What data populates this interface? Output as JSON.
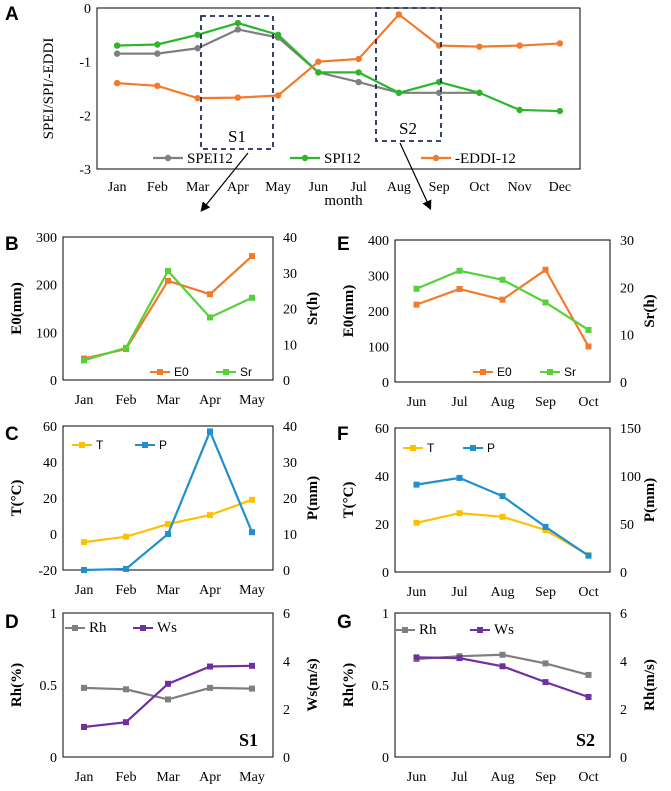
{
  "colors": {
    "grey": "#7f7f7f",
    "green": "#2db52d",
    "orange": "#f4792a",
    "lightgreen": "#55d13a",
    "yellow": "#ffc000",
    "blue": "#1f8fd0",
    "purple": "#7030a0",
    "dash": "#1f2d5a"
  },
  "chart_data": [
    {
      "id": "A",
      "panel_label": "A",
      "type": "line",
      "categories": [
        "Jan",
        "Feb",
        "Mar",
        "Apr",
        "May",
        "Jun",
        "Jul",
        "Aug",
        "Sep",
        "Oct",
        "Nov",
        "Dec"
      ],
      "xlabel": "month",
      "ylabel": "SPEI/SPI/-EDDI",
      "ylim": [
        -3,
        0
      ],
      "yticks": [
        "-3",
        "-2",
        "-1",
        "0"
      ],
      "series": [
        {
          "name": "SPEI12",
          "color": "grey",
          "values": [
            -0.85,
            -0.85,
            -0.75,
            -0.4,
            -0.55,
            -1.2,
            -1.38,
            -1.58,
            -1.58,
            -1.58,
            null,
            null
          ]
        },
        {
          "name": "SPI12",
          "color": "green",
          "values": [
            -0.7,
            -0.68,
            -0.5,
            -0.28,
            -0.5,
            -1.2,
            -1.2,
            -1.58,
            -1.38,
            -1.58,
            -1.9,
            -1.92
          ]
        },
        {
          "name": "-EDDI-12",
          "color": "orange",
          "values": [
            -1.4,
            -1.45,
            -1.68,
            -1.67,
            -1.63,
            -1.0,
            -0.95,
            -0.12,
            -0.7,
            -0.72,
            -0.7,
            -0.66
          ]
        }
      ],
      "annotations": [
        "S1",
        "S2"
      ]
    },
    {
      "id": "B",
      "panel_label": "B",
      "type": "line",
      "categories": [
        "Jan",
        "Feb",
        "Mar",
        "Apr",
        "May"
      ],
      "ylabel": "E0(mm)",
      "y2label": "Sr(h)",
      "ylim": [
        0,
        300
      ],
      "y2lim": [
        0,
        40
      ],
      "yticks": [
        "0",
        "100",
        "200",
        "300"
      ],
      "y2ticks": [
        "0",
        "10",
        "20",
        "30",
        "40"
      ],
      "series": [
        {
          "name": "E0",
          "axis": "left",
          "color": "orange",
          "values": [
            45,
            65,
            208,
            180,
            260
          ]
        },
        {
          "name": "Sr",
          "axis": "right",
          "color": "lightgreen",
          "values": [
            5.5,
            9.0,
            30.5,
            17.5,
            23
          ]
        }
      ]
    },
    {
      "id": "E",
      "panel_label": "E",
      "type": "line",
      "categories": [
        "Jun",
        "Jul",
        "Aug",
        "Sep",
        "Oct"
      ],
      "ylabel": "E0(mm)",
      "y2label": "Sr(h)",
      "ylim": [
        0,
        400
      ],
      "y2lim": [
        0,
        30
      ],
      "yticks": [
        "0",
        "100",
        "200",
        "300",
        "400"
      ],
      "y2ticks": [
        "0",
        "10",
        "20",
        "30"
      ],
      "series": [
        {
          "name": "E0",
          "axis": "left",
          "color": "orange",
          "values": [
            218,
            262,
            232,
            316,
            100
          ]
        },
        {
          "name": "Sr",
          "axis": "right",
          "color": "lightgreen",
          "values": [
            19.7,
            23.5,
            21.6,
            16.8,
            11
          ]
        }
      ]
    },
    {
      "id": "C",
      "panel_label": "C",
      "type": "line",
      "categories": [
        "Jan",
        "Feb",
        "Mar",
        "Apr",
        "May"
      ],
      "ylabel": "T(°C)",
      "y2label": "P(mm)",
      "ylim": [
        -20,
        60
      ],
      "y2lim": [
        0,
        40
      ],
      "yticks": [
        "-20",
        "0",
        "20",
        "40",
        "60"
      ],
      "y2ticks": [
        "0",
        "10",
        "20",
        "30",
        "40"
      ],
      "series": [
        {
          "name": "T",
          "axis": "left",
          "color": "yellow",
          "values": [
            -4.5,
            -1.5,
            5.5,
            10.5,
            19.0
          ]
        },
        {
          "name": "P",
          "axis": "right",
          "color": "blue",
          "values": [
            0,
            0.3,
            10.0,
            38.5,
            10.5
          ]
        }
      ]
    },
    {
      "id": "F",
      "panel_label": "F",
      "type": "line",
      "categories": [
        "Jun",
        "Jul",
        "Aug",
        "Sep",
        "Oct"
      ],
      "ylabel": "T(°C)",
      "y2label": "P(mm)",
      "ylim": [
        0,
        60
      ],
      "y2lim": [
        0,
        150
      ],
      "yticks": [
        "0",
        "20",
        "40",
        "60"
      ],
      "y2ticks": [
        "0",
        "50",
        "100",
        "150"
      ],
      "series": [
        {
          "name": "T",
          "axis": "left",
          "color": "yellow",
          "values": [
            20.5,
            24.5,
            23,
            17.5,
            7
          ]
        },
        {
          "name": "P",
          "axis": "right",
          "color": "blue",
          "values": [
            91,
            98,
            79,
            47,
            17
          ]
        }
      ]
    },
    {
      "id": "D",
      "panel_label": "D",
      "type": "line",
      "categories": [
        "Jan",
        "Feb",
        "Mar",
        "Apr",
        "May"
      ],
      "ylabel": "Rh(%)",
      "y2label": "Ws(m/s)",
      "ylim": [
        0,
        1
      ],
      "y2lim": [
        0,
        6
      ],
      "yticks": [
        "0",
        "0.5",
        "1"
      ],
      "y2ticks": [
        "0",
        "2",
        "4",
        "6"
      ],
      "series": [
        {
          "name": "Rh",
          "axis": "left",
          "color": "grey",
          "values": [
            0.48,
            0.47,
            0.4,
            0.48,
            0.475
          ]
        },
        {
          "name": "Ws",
          "axis": "right",
          "color": "purple",
          "values": [
            1.25,
            1.45,
            3.05,
            3.77,
            3.8
          ]
        }
      ],
      "annotation": "S1"
    },
    {
      "id": "G",
      "panel_label": "G",
      "type": "line",
      "categories": [
        "Jun",
        "Jul",
        "Aug",
        "Sep",
        "Oct"
      ],
      "ylabel": "Rh(%)",
      "y2label": "Rh(m/s)",
      "ylim": [
        0,
        1
      ],
      "y2lim": [
        0,
        6
      ],
      "yticks": [
        "0",
        "0.5",
        "1"
      ],
      "y2ticks": [
        "0",
        "2",
        "4",
        "6"
      ],
      "series": [
        {
          "name": "Rh",
          "axis": "left",
          "color": "grey",
          "values": [
            0.68,
            0.7,
            0.71,
            0.65,
            0.57
          ]
        },
        {
          "name": "Ws",
          "axis": "right",
          "color": "purple",
          "values": [
            4.15,
            4.12,
            3.78,
            3.12,
            2.5
          ]
        }
      ],
      "annotation": "S2"
    }
  ]
}
